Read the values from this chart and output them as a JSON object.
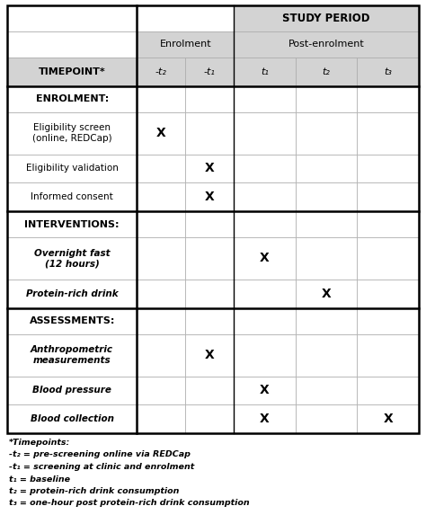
{
  "sections": [
    {
      "header": "ENROLMENT:",
      "header_style": "bold",
      "rows": [
        {
          "label": "Eligibility screen\n(online, REDCap)",
          "label_style": "normal",
          "marks": [
            1,
            0,
            0,
            0,
            0
          ]
        },
        {
          "label": "Eligibility validation",
          "label_style": "normal",
          "marks": [
            0,
            1,
            0,
            0,
            0
          ]
        },
        {
          "label": "Informed consent",
          "label_style": "normal",
          "marks": [
            0,
            1,
            0,
            0,
            0
          ]
        }
      ]
    },
    {
      "header": "INTERVENTIONS:",
      "header_style": "bold",
      "rows": [
        {
          "label": "Overnight fast\n(12 hours)",
          "label_style": "italic_bold",
          "marks": [
            0,
            0,
            1,
            0,
            0
          ]
        },
        {
          "label": "Protein-rich drink",
          "label_style": "italic_bold",
          "marks": [
            0,
            0,
            0,
            1,
            0
          ]
        }
      ]
    },
    {
      "header": "ASSESSMENTS:",
      "header_style": "bold",
      "rows": [
        {
          "label": "Anthropometric\nmeasurements",
          "label_style": "italic_bold",
          "marks": [
            0,
            1,
            0,
            0,
            0
          ]
        },
        {
          "label": "Blood pressure",
          "label_style": "italic_bold",
          "marks": [
            0,
            0,
            1,
            0,
            0
          ]
        },
        {
          "label": "Blood collection",
          "label_style": "italic_bold",
          "marks": [
            0,
            0,
            1,
            0,
            1
          ]
        }
      ]
    }
  ],
  "tp_labels": [
    "-t₂",
    "-t₁",
    "t₁",
    "t₂",
    "t₃"
  ],
  "footnote_lines": [
    "*Timepoints:",
    "-t₂ = pre-screening online via REDCap",
    "-t₁ = screening at clinic and enrolment",
    "t₁ = baseline",
    "t₂ = protein-rich drink consumption",
    "t₃ = one-hour post protein-rich drink consumption"
  ],
  "bg_color": "#ffffff",
  "header_bg": "#d3d3d3",
  "line_color": "#aaaaaa",
  "thick_line_color": "#000000",
  "text_color": "#000000",
  "fig_width": 4.74,
  "fig_height": 5.73,
  "dpi": 100
}
